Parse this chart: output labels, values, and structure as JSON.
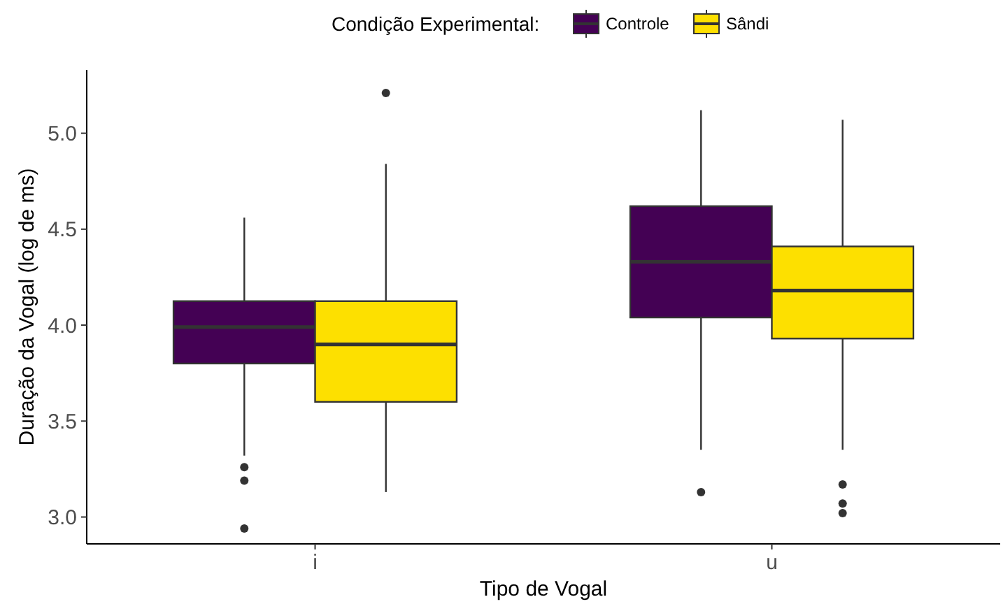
{
  "chart_data": {
    "type": "box",
    "xlabel": "Tipo de Vogal",
    "ylabel": "Duração da Vogal (log de ms)",
    "legend_title": "Condição Experimental:",
    "legend": "top",
    "categories": [
      "i",
      "u"
    ],
    "ylim": [
      2.86,
      5.33
    ],
    "yticks": [
      {
        "value": 3,
        "label": "3.0"
      },
      {
        "value": 3.5,
        "label": "3.5"
      },
      {
        "value": 4,
        "label": "4.0"
      },
      {
        "value": 4.5,
        "label": "4.5"
      },
      {
        "value": 5,
        "label": "5.0"
      }
    ],
    "grid": false,
    "series": [
      {
        "name": "Controle",
        "color": "#440154",
        "boxes": [
          {
            "low": 3.32,
            "q1": 3.8,
            "median": 3.99,
            "q3": 4.125,
            "high": 4.56,
            "outliers": [
              3.26,
              3.19,
              2.94
            ]
          },
          {
            "low": 3.35,
            "q1": 4.04,
            "median": 4.33,
            "q3": 4.62,
            "high": 5.12,
            "outliers": [
              3.13
            ]
          }
        ]
      },
      {
        "name": "Sândi",
        "color": "#fde000",
        "boxes": [
          {
            "low": 3.13,
            "q1": 3.6,
            "median": 3.9,
            "q3": 4.125,
            "high": 4.84,
            "outliers": [
              5.21
            ]
          },
          {
            "low": 3.35,
            "q1": 3.93,
            "median": 4.18,
            "q3": 4.41,
            "high": 5.07,
            "outliers": [
              3.17,
              3.07,
              3.02
            ]
          }
        ]
      }
    ]
  }
}
